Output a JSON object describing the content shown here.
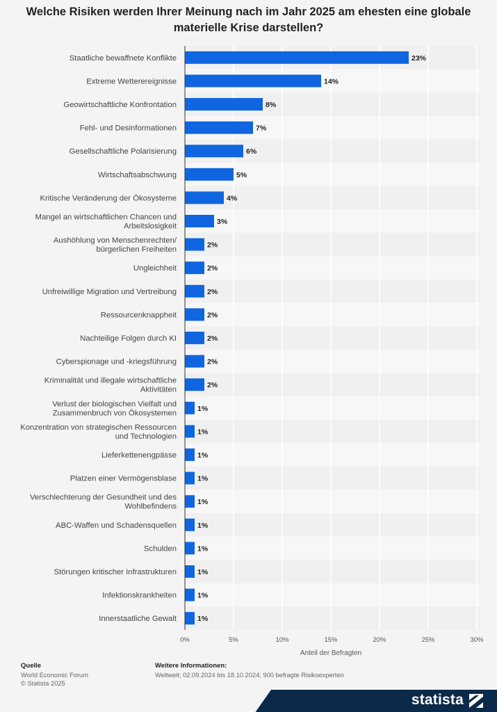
{
  "chart_data": {
    "type": "bar",
    "orientation": "horizontal",
    "title": "Welche Risiken werden Ihrer Meinung nach im Jahr 2025 am ehesten eine globale materielle Krise darstellen?",
    "title_lines": [
      "Welche Risiken werden Ihrer Meinung nach im Jahr 2025 am ehesten eine globale",
      "materielle Krise darstellen?"
    ],
    "xlabel": "Anteil der Befragten",
    "ylabel": "",
    "xlim": [
      0,
      30
    ],
    "xticks": [
      "0%",
      "5%",
      "10%",
      "15%",
      "20%",
      "25%",
      "30%"
    ],
    "grid": true,
    "bar_color": "#0f66e0",
    "categories": [
      [
        "Staatliche bewaffnete Konflikte"
      ],
      [
        "Extreme Wetterereignisse"
      ],
      [
        "Geowirtschaftliche Konfrontation"
      ],
      [
        "Fehl- und Desinformationen"
      ],
      [
        "Gesellschaftliche Polarisierung"
      ],
      [
        "Wirtschaftsabschwung"
      ],
      [
        "Kritische Veränderung der Ökosysteme"
      ],
      [
        "Mangel an wirtschaftlichen Chancen und",
        "Arbeitslosigkeit"
      ],
      [
        "Aushöhlung von Menschenrechten/",
        "bürgerlichen Freiheiten"
      ],
      [
        "Ungleichheit"
      ],
      [
        "Unfreiwillige Migration und Vertreibung"
      ],
      [
        "Ressourcenknappheit"
      ],
      [
        "Nachteilige Folgen durch KI"
      ],
      [
        "Cyberspionage und -kriegsführung"
      ],
      [
        "Kriminalität und illegale wirtschaftliche",
        "Aktivitäten"
      ],
      [
        "Verlust der biologischen Vielfalt und",
        "Zusammenbruch von Ökosystemen"
      ],
      [
        "Konzentration von strategischen Ressourcen",
        "und Technologien"
      ],
      [
        "Lieferkettenengpässe"
      ],
      [
        "Platzen einer Vermögensblase"
      ],
      [
        "Verschlechterung der Gesundheit und des",
        "Wohlbefindens"
      ],
      [
        "ABC-Waffen und Schadensquellen"
      ],
      [
        "Schulden"
      ],
      [
        "Störungen kritischer Infrastrukturen"
      ],
      [
        "Infektionskrankheiten"
      ],
      [
        "Innerstaatliche Gewalt"
      ]
    ],
    "values": [
      23,
      14,
      8,
      7,
      6,
      5,
      4,
      3,
      2,
      2,
      2,
      2,
      2,
      2,
      2,
      1,
      1,
      1,
      1,
      1,
      1,
      1,
      1,
      1,
      1
    ],
    "value_labels": [
      "23%",
      "14%",
      "8%",
      "7%",
      "6%",
      "5%",
      "4%",
      "3%",
      "2%",
      "2%",
      "2%",
      "2%",
      "2%",
      "2%",
      "2%",
      "1%",
      "1%",
      "1%",
      "1%",
      "1%",
      "1%",
      "1%",
      "1%",
      "1%",
      "1%"
    ]
  },
  "footer": {
    "source_heading": "Quelle",
    "source_lines": [
      "World Economic Forum",
      "© Statista 2025"
    ],
    "info_heading": "Weitere Informationen:",
    "info_text": "Weltweit; 02.09.2024 bis 18.10.2024; 900 befragte Risikoexperten"
  },
  "brand": {
    "logo_text": "statista",
    "logo_icon": "statista-logo-icon",
    "color": "#0b2a4a"
  }
}
